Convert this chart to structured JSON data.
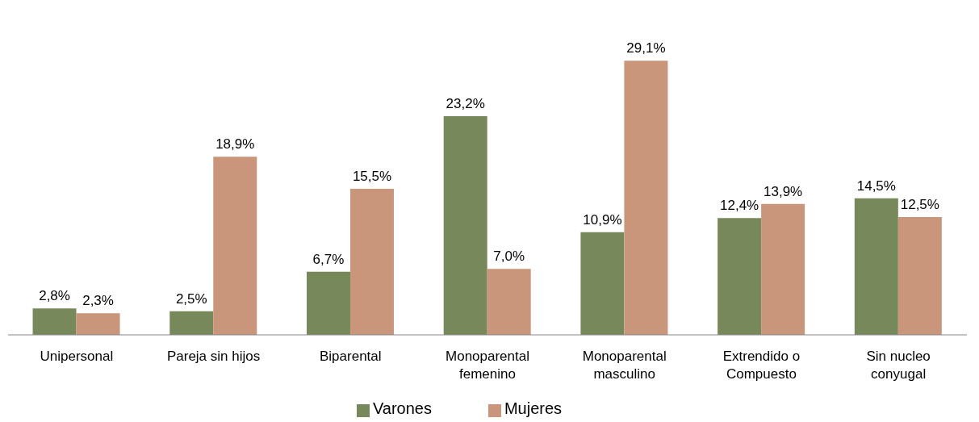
{
  "chart_data": {
    "type": "bar",
    "categories": [
      "Unipersonal",
      "Pareja sin hijos",
      "Biparental",
      "Monoparental femenino",
      "Monoparental masculino",
      "Extrendido o Compuesto",
      "Sin nucleo conyugal"
    ],
    "series": [
      {
        "name": "Varones",
        "color": "#77895a",
        "values": [
          2.8,
          2.5,
          6.7,
          23.2,
          10.9,
          12.4,
          14.5
        ],
        "value_labels": [
          "2,8%",
          "2,5%",
          "6,7%",
          "23,2%",
          "10,9%",
          "12,4%",
          "14,5%"
        ]
      },
      {
        "name": "Mujeres",
        "color": "#c9967c",
        "values": [
          2.3,
          18.9,
          15.5,
          7.0,
          29.1,
          13.9,
          12.5
        ],
        "value_labels": [
          "2,3%",
          "18,9%",
          "15,5%",
          "7,0%",
          "29,1%",
          "13,9%",
          "12,5%"
        ]
      }
    ],
    "legend": "bottom",
    "grid": false
  }
}
